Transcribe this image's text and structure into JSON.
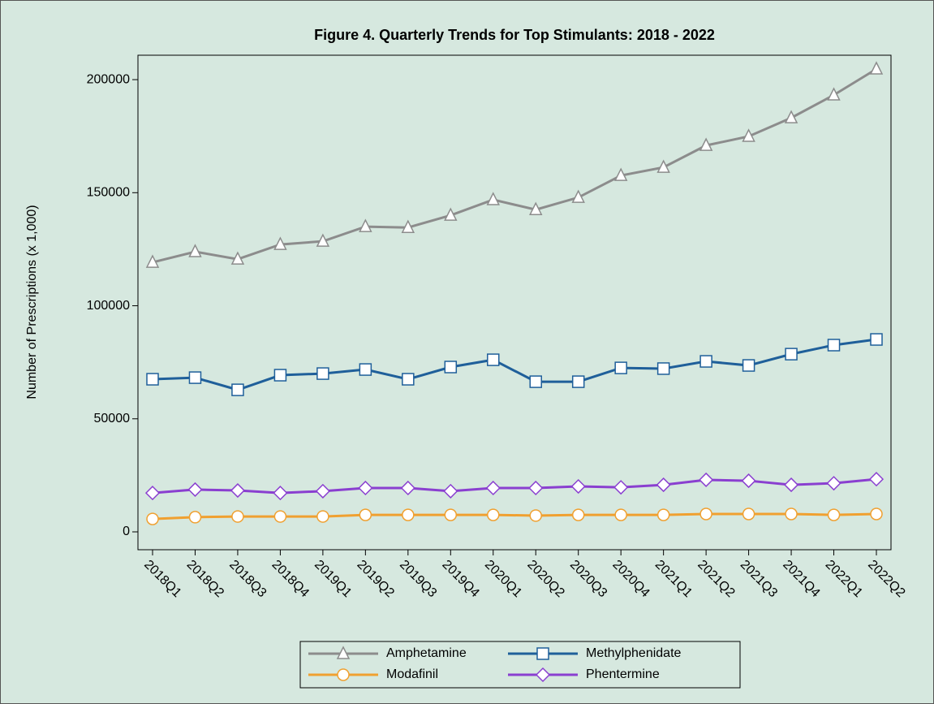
{
  "chart_data": {
    "type": "line",
    "title": "Figure 4. Quarterly Trends for Top Stimulants: 2018 - 2022",
    "y_label": "Number of Prescriptions (x 1,000)",
    "categories": [
      "2018Q1",
      "2018Q2",
      "2018Q3",
      "2018Q4",
      "2019Q1",
      "2019Q2",
      "2019Q3",
      "2019Q4",
      "2020Q1",
      "2020Q2",
      "2020Q3",
      "2020Q4",
      "2021Q1",
      "2021Q2",
      "2021Q3",
      "2021Q4",
      "2022Q1",
      "2022Q2"
    ],
    "series": [
      {
        "name": "Amphetamine",
        "color": "#8c8c8c",
        "marker": "triangle",
        "values": [
          119200,
          123900,
          120600,
          127100,
          128500,
          135000,
          134600,
          140000,
          146900,
          142500,
          147900,
          157600,
          161200,
          170900,
          174900,
          183100,
          193200,
          204700
        ]
      },
      {
        "name": "Methylphenidate",
        "color": "#1f5f9a",
        "marker": "square",
        "values": [
          67500,
          68200,
          62800,
          69300,
          70000,
          71800,
          67500,
          72900,
          76100,
          66400,
          66400,
          72500,
          72200,
          75400,
          73600,
          78600,
          82600,
          85100
        ]
      },
      {
        "name": "Modafinil",
        "color": "#f0a030",
        "marker": "circle",
        "values": [
          5700,
          6500,
          6800,
          6800,
          6800,
          7500,
          7500,
          7500,
          7500,
          7200,
          7500,
          7500,
          7500,
          7900,
          7900,
          7900,
          7500,
          7900
        ]
      },
      {
        "name": "Phentermine",
        "color": "#8a3fd0",
        "marker": "diamond",
        "values": [
          17200,
          18700,
          18300,
          17200,
          18000,
          19400,
          19400,
          18000,
          19400,
          19400,
          20100,
          19700,
          20800,
          23000,
          22600,
          20800,
          21500,
          23300
        ]
      }
    ],
    "ylim": [
      -7900,
      210800
    ],
    "yticks": [
      0,
      50000,
      100000,
      150000,
      200000
    ],
    "grid": false,
    "legend": "bottom"
  }
}
